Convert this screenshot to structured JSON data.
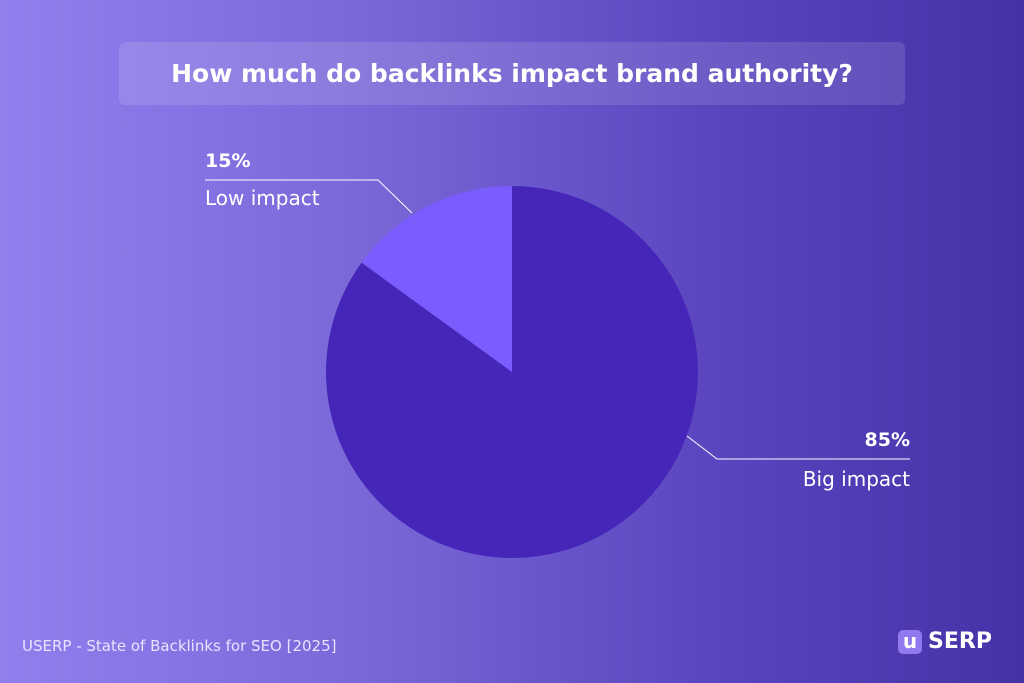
{
  "chart_data": {
    "type": "pie",
    "title": "How much do backlinks impact brand authority?",
    "slices": [
      {
        "label": "Big impact",
        "value": 85,
        "value_label": "85%",
        "color": "#4526b8"
      },
      {
        "label": "Low impact",
        "value": 15,
        "value_label": "15%",
        "color": "#7b5cff"
      }
    ],
    "start_angle_deg": 0,
    "direction": "clockwise"
  },
  "footer": {
    "source": "USERP - State of Backlinks for SEO [2025]",
    "logo_mark": "u",
    "logo_text": "SERP"
  }
}
